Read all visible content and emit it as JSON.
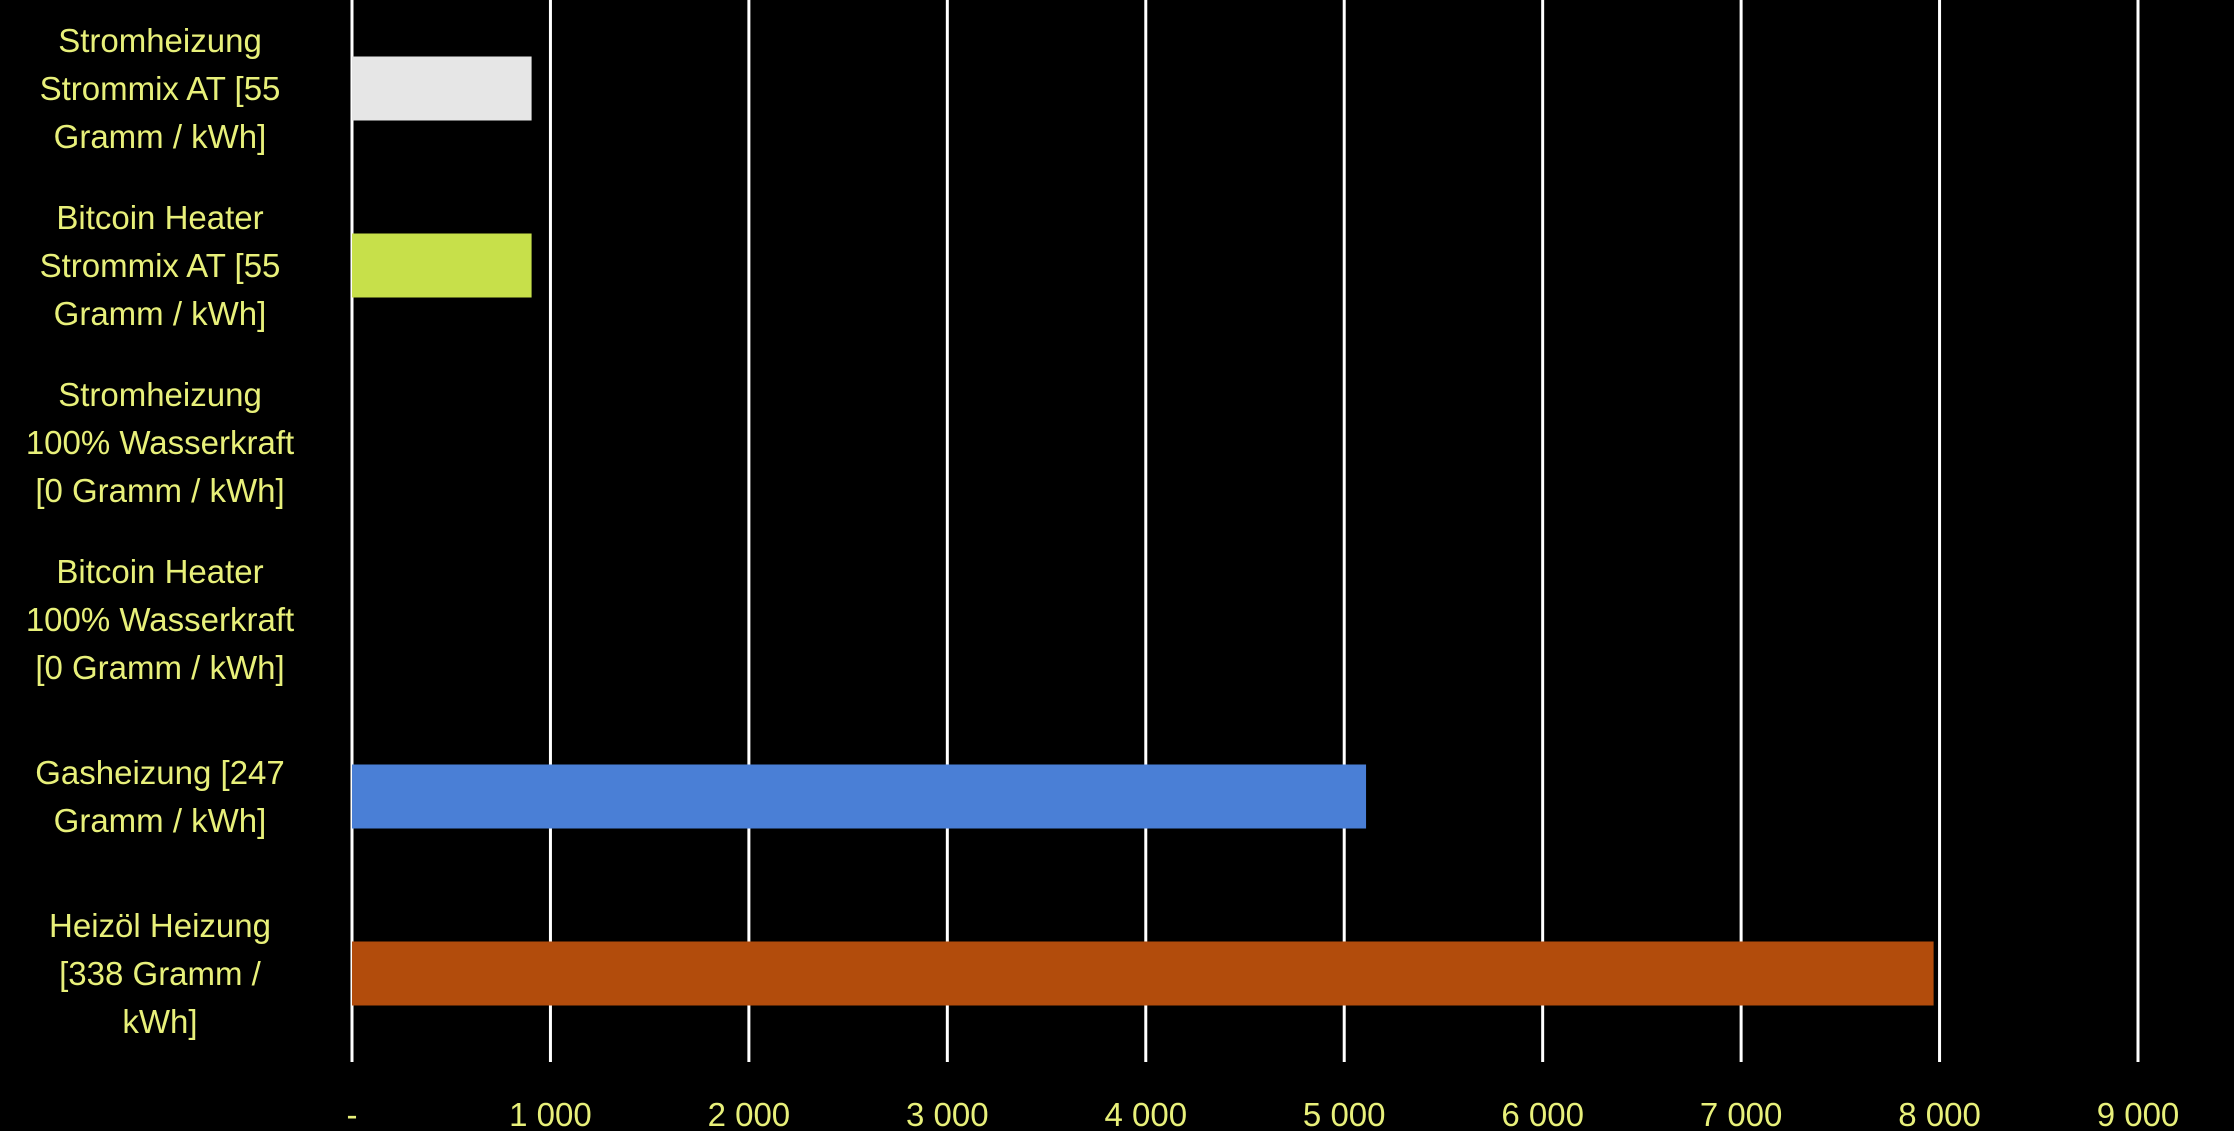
{
  "chart_data": {
    "type": "bar",
    "orientation": "horizontal",
    "categories": [
      "Stromheizung Strommix AT [55 Gramm / kWh]",
      "Bitcoin Heater Strommix AT [55 Gramm / kWh]",
      "Stromheizung 100% Wasserkraft [0 Gramm / kWh]",
      "Bitcoin Heater 100% Wasserkraft [0 Gramm / kWh]",
      "Gasheizung [247 Gramm / kWh]",
      "Heizöl Heizung [338 Gramm / kWh]"
    ],
    "category_lines": [
      [
        "Stromheizung",
        "Strommix AT [55",
        "Gramm / kWh]"
      ],
      [
        "Bitcoin Heater",
        "Strommix AT [55",
        "Gramm / kWh]"
      ],
      [
        "Stromheizung",
        "100% Wasserkraft",
        "[0 Gramm / kWh]"
      ],
      [
        "Bitcoin Heater",
        "100% Wasserkraft",
        "[0 Gramm / kWh]"
      ],
      [
        "Gasheizung [247",
        "Gramm / kWh]"
      ],
      [
        "Heizöl Heizung",
        "[338 Gramm /",
        "kWh]"
      ]
    ],
    "values": [
      905,
      905,
      0,
      0,
      5110,
      7970
    ],
    "bar_colors": [
      "#e6e6e6",
      "#c7e04a",
      "#000000",
      "#000000",
      "#4a7fd6",
      "#b24c0c"
    ],
    "xlim": [
      0,
      9000
    ],
    "xticks": [
      0,
      1000,
      2000,
      3000,
      4000,
      5000,
      6000,
      7000,
      8000,
      9000
    ],
    "xtick_labels": [
      "-",
      "1 000",
      "2 000",
      "3 000",
      "4 000",
      "5 000",
      "6 000",
      "7 000",
      "8 000",
      "9 000"
    ],
    "grid": true,
    "legend": "none",
    "title": "",
    "xlabel": "",
    "ylabel": ""
  },
  "colors": {
    "background": "#000000",
    "gridline": "#ffffff",
    "label_text": "#e8f07a"
  }
}
